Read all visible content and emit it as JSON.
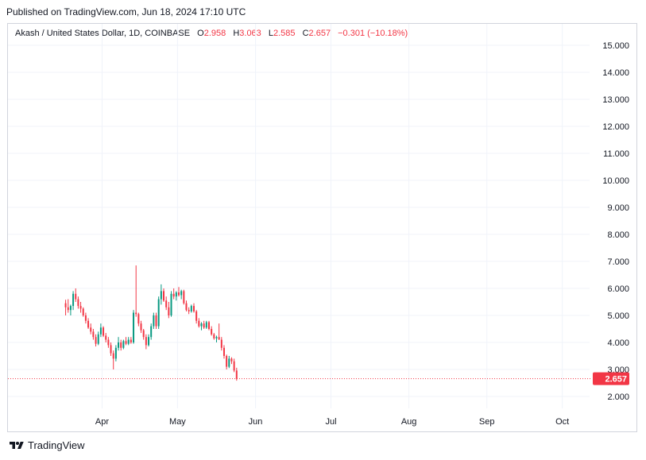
{
  "published": "Published on TradingView.com, Jun 18, 2024 17:10 UTC",
  "legend": {
    "symbol": "Akash / United States Dollar, 1D, COINBASE",
    "o_label": "O",
    "o_value": "2.958",
    "h_label": "H",
    "h_value": "3.063",
    "l_label": "L",
    "l_value": "2.585",
    "c_label": "C",
    "c_value": "2.657",
    "change": "−0.301 (−10.18%)"
  },
  "footer": {
    "brand": "TradingView",
    "logo_icon": "tradingview-logo-icon"
  },
  "colors": {
    "up": "#089981",
    "down": "#f23645",
    "grid": "#f0f3fa",
    "axis_text": "#131722"
  },
  "chart_data": {
    "type": "candlestick",
    "y_ticks": [
      "2.000",
      "3.000",
      "4.000",
      "5.000",
      "6.000",
      "7.000",
      "8.000",
      "9.000",
      "10.000",
      "11.000",
      "12.000",
      "13.000",
      "14.000",
      "15.000"
    ],
    "ylim": [
      1.62,
      15.62
    ],
    "x_ticks": [
      "Apr",
      "May",
      "Jun",
      "Jul",
      "Aug",
      "Sep",
      "Oct"
    ],
    "x_range_days": [
      0,
      218
    ],
    "first_candle_date": "2024-03-17",
    "last_price_label": "2.657",
    "last_price": 2.657,
    "grid": true,
    "price_scale": "right",
    "candles": [
      [
        5.45,
        5.58,
        5.0,
        5.3
      ],
      [
        5.3,
        5.6,
        5.1,
        5.2
      ],
      [
        5.2,
        5.4,
        5.0,
        5.35
      ],
      [
        5.35,
        5.9,
        5.2,
        5.8
      ],
      [
        5.8,
        6.0,
        5.5,
        5.6
      ],
      [
        5.6,
        5.7,
        5.25,
        5.35
      ],
      [
        5.35,
        5.5,
        5.1,
        5.25
      ],
      [
        5.25,
        5.3,
        4.95,
        5.0
      ],
      [
        5.0,
        5.1,
        4.7,
        4.8
      ],
      [
        4.8,
        4.9,
        4.5,
        4.55
      ],
      [
        4.55,
        4.7,
        4.3,
        4.4
      ],
      [
        4.4,
        4.5,
        4.1,
        4.2
      ],
      [
        4.2,
        4.3,
        3.85,
        3.95
      ],
      [
        3.95,
        4.4,
        3.9,
        4.3
      ],
      [
        4.3,
        4.7,
        4.2,
        4.55
      ],
      [
        4.55,
        4.6,
        4.2,
        4.25
      ],
      [
        4.25,
        4.35,
        4.0,
        4.1
      ],
      [
        4.1,
        4.2,
        3.8,
        3.9
      ],
      [
        3.9,
        4.0,
        3.5,
        3.6
      ],
      [
        3.6,
        3.7,
        3.0,
        3.4
      ],
      [
        3.4,
        3.9,
        3.3,
        3.8
      ],
      [
        3.8,
        4.2,
        3.7,
        4.0
      ],
      [
        4.0,
        4.1,
        3.7,
        3.8
      ],
      [
        3.8,
        4.1,
        3.75,
        4.05
      ],
      [
        4.05,
        4.2,
        3.9,
        3.95
      ],
      [
        3.95,
        4.2,
        3.9,
        4.1
      ],
      [
        4.1,
        4.2,
        3.95,
        4.0
      ],
      [
        4.0,
        5.2,
        3.95,
        5.1
      ],
      [
        5.1,
        6.85,
        4.95,
        5.05
      ],
      [
        5.05,
        5.1,
        4.6,
        4.7
      ],
      [
        4.7,
        4.8,
        4.35,
        4.45
      ],
      [
        4.45,
        4.5,
        4.1,
        4.2
      ],
      [
        4.2,
        4.3,
        3.75,
        3.9
      ],
      [
        3.9,
        4.3,
        3.85,
        4.2
      ],
      [
        4.2,
        4.7,
        4.1,
        4.6
      ],
      [
        4.6,
        5.1,
        4.5,
        5.0
      ],
      [
        5.0,
        5.1,
        4.5,
        4.6
      ],
      [
        4.6,
        5.7,
        4.5,
        5.6
      ],
      [
        5.6,
        6.15,
        5.4,
        5.9
      ],
      [
        5.9,
        6.0,
        5.5,
        5.55
      ],
      [
        5.55,
        5.7,
        5.2,
        5.3
      ],
      [
        5.3,
        5.5,
        4.9,
        5.0
      ],
      [
        5.0,
        5.9,
        4.95,
        5.8
      ],
      [
        5.8,
        6.0,
        5.6,
        5.7
      ],
      [
        5.7,
        5.9,
        5.55,
        5.85
      ],
      [
        5.85,
        6.05,
        5.7,
        5.75
      ],
      [
        5.75,
        5.95,
        5.6,
        5.9
      ],
      [
        5.9,
        5.95,
        5.4,
        5.45
      ],
      [
        5.45,
        5.55,
        5.15,
        5.2
      ],
      [
        5.2,
        5.3,
        5.05,
        5.15
      ],
      [
        5.15,
        5.4,
        5.1,
        5.35
      ],
      [
        5.35,
        5.45,
        5.1,
        5.15
      ],
      [
        5.15,
        5.2,
        4.7,
        4.8
      ],
      [
        4.8,
        4.9,
        4.55,
        4.6
      ],
      [
        4.6,
        4.75,
        4.45,
        4.7
      ],
      [
        4.7,
        4.8,
        4.5,
        4.55
      ],
      [
        4.55,
        4.8,
        4.5,
        4.75
      ],
      [
        4.75,
        4.8,
        4.45,
        4.5
      ],
      [
        4.5,
        4.6,
        4.25,
        4.3
      ],
      [
        4.3,
        4.35,
        4.1,
        4.15
      ],
      [
        4.15,
        4.25,
        4.0,
        4.2
      ],
      [
        4.2,
        4.7,
        4.1,
        4.1
      ],
      [
        4.1,
        4.2,
        3.7,
        3.8
      ],
      [
        3.8,
        3.9,
        3.4,
        3.5
      ],
      [
        3.5,
        3.55,
        3.0,
        3.1
      ],
      [
        3.1,
        3.5,
        3.05,
        3.4
      ],
      [
        3.4,
        3.45,
        3.2,
        3.3
      ],
      [
        3.3,
        3.4,
        2.9,
        2.96
      ],
      [
        2.958,
        3.063,
        2.585,
        2.657
      ]
    ]
  }
}
